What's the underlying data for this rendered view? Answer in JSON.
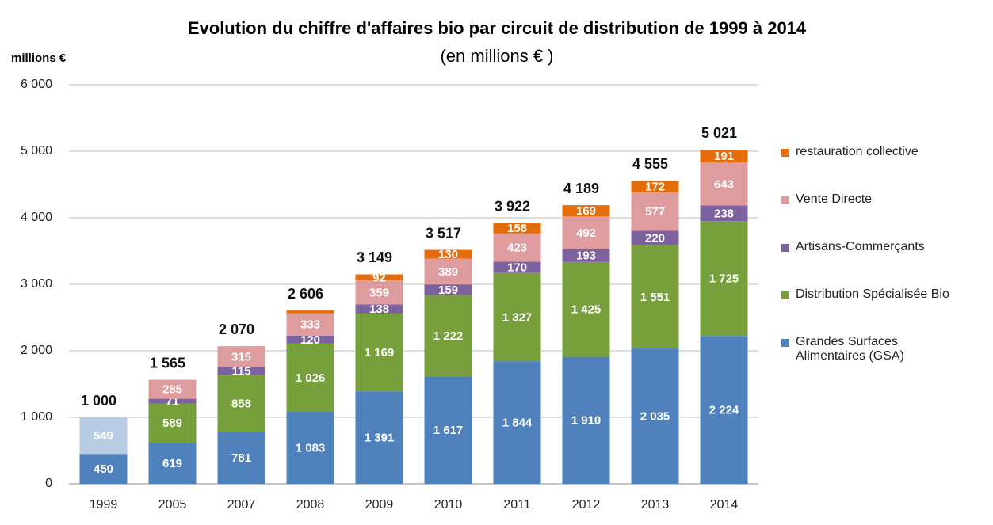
{
  "chart_data": {
    "type": "stacked_bar",
    "title": "Evolution du chiffre d'affaires bio par circuit de distribution de 1999 à 2014",
    "subtitle": "(en millions € )",
    "y_label": "millions €",
    "categories": [
      "1999",
      "2005",
      "2007",
      "2008",
      "2009",
      "2010",
      "2011",
      "2012",
      "2013",
      "2014"
    ],
    "series": [
      {
        "name": "Grandes Surfaces Alimentaires (GSA)",
        "color": "#4f81bd",
        "values": [
          450,
          619,
          781,
          1083,
          1391,
          1617,
          1844,
          1910,
          2035,
          2224
        ],
        "value_labels": [
          "450",
          "619",
          "781",
          "1 083",
          "1 391",
          "1 617",
          "1 844",
          "1 910",
          "2 035",
          "2 224"
        ]
      },
      {
        "color": "#b9cde5",
        "values": [
          549,
          null,
          null,
          null,
          null,
          null,
          null,
          null,
          null,
          null
        ],
        "value_labels": [
          "549",
          null,
          null,
          null,
          null,
          null,
          null,
          null,
          null,
          null
        ]
      },
      {
        "name": "Distribution Spécialisée Bio",
        "color": "#77a03c",
        "values": [
          null,
          589,
          858,
          1026,
          1169,
          1222,
          1327,
          1425,
          1551,
          1725
        ],
        "value_labels": [
          null,
          "589",
          "858",
          "1 026",
          "1 169",
          "1 222",
          "1 327",
          "1 425",
          "1 551",
          "1 725"
        ]
      },
      {
        "name": "Artisans-Commerçants",
        "color": "#7e62a0",
        "values": [
          null,
          71,
          115,
          120,
          138,
          159,
          170,
          193,
          220,
          238
        ],
        "value_labels": [
          null,
          "71",
          "115",
          "120",
          "138",
          "159",
          "170",
          "193",
          "220",
          "238"
        ]
      },
      {
        "name": "Vente Directe",
        "color": "#df9c9f",
        "values": [
          null,
          285,
          315,
          333,
          359,
          389,
          423,
          492,
          577,
          643
        ],
        "value_labels": [
          null,
          "285",
          "315",
          "333",
          "359",
          "389",
          "423",
          "492",
          "577",
          "643"
        ]
      },
      {
        "name": "restauration collective",
        "color": "#e46c0a",
        "values": [
          null,
          1,
          1,
          44,
          92,
          130,
          158,
          169,
          172,
          191
        ],
        "value_labels": [
          null,
          null,
          null,
          null,
          "92",
          "130",
          "158",
          "169",
          "172",
          "191"
        ]
      }
    ],
    "totals": [
      1000,
      1565,
      2070,
      2606,
      3149,
      3517,
      3922,
      4189,
      4555,
      5021
    ],
    "total_labels": [
      "1 000",
      "1 565",
      "2 070",
      "2 606",
      "3 149",
      "3 517",
      "3 922",
      "4 189",
      "4 555",
      "5 021"
    ],
    "ylim": [
      0,
      6000
    ],
    "yticks": [
      0,
      {
        "value": 1000,
        "label": "1 000"
      },
      {
        "value": 2000,
        "label": "2 000"
      },
      {
        "value": 3000,
        "label": "3 000"
      },
      {
        "value": 4000,
        "label": "4 000"
      },
      {
        "value": 5000,
        "label": "5 000"
      },
      {
        "value": 6000,
        "label": "6 000"
      }
    ],
    "grid": true
  }
}
